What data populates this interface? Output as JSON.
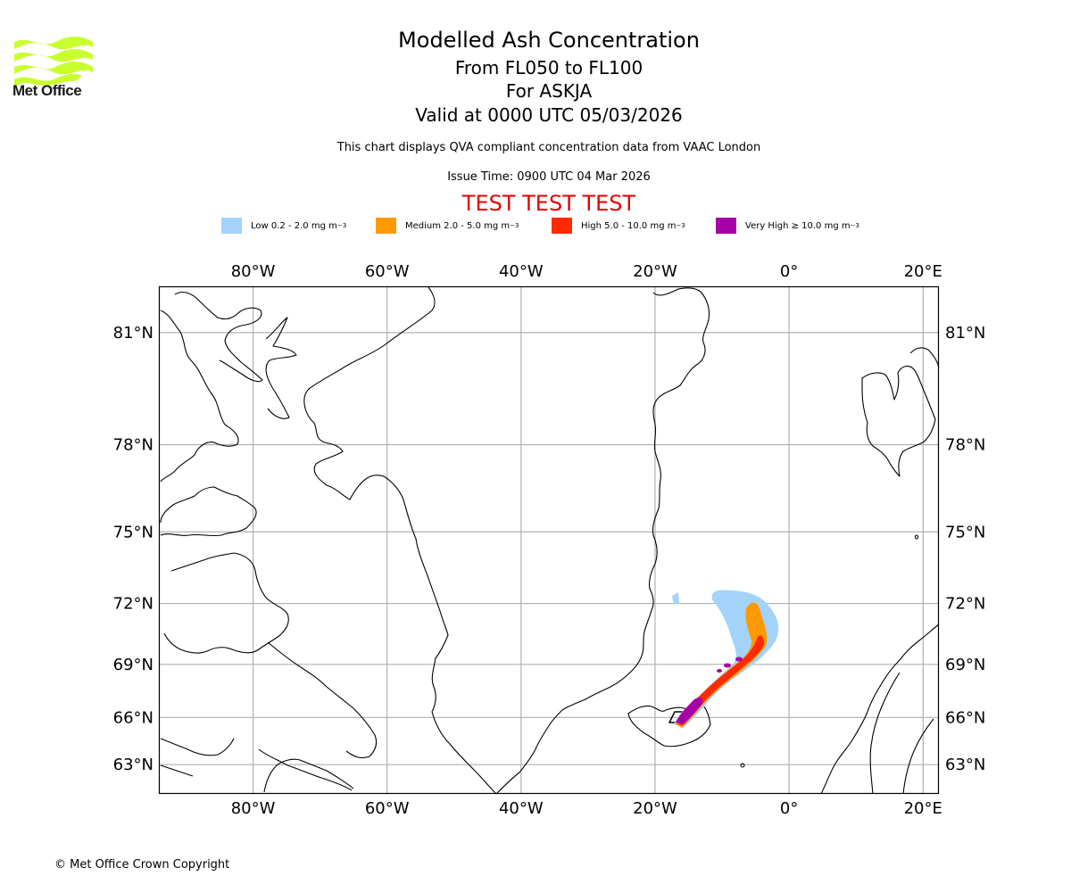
{
  "header": {
    "logo_label": "Met Office",
    "title": "Modelled Ash Concentration",
    "flight_levels": "From FL050 to FL100",
    "volcano": "For ASKJA",
    "valid_time": "Valid at 0000 UTC 05/03/2026",
    "subtitle": "This chart displays QVA compliant concentration data from VAAC London",
    "issue_time": "Issue Time: 0900 UTC 04 Mar 2026",
    "test_banner": "TEST TEST TEST"
  },
  "legend": {
    "unit_suffix": "mg m",
    "unit_exponent": "−3",
    "items": [
      {
        "label": "Low 0.2 - 2.0",
        "color": "#a3d3fa"
      },
      {
        "label": "Medium 2.0 - 5.0",
        "color": "#ff9900"
      },
      {
        "label": "High 5.0 - 10.0",
        "color": "#ff2a00"
      },
      {
        "label": "Very High ≥ 10.0",
        "color": "#a600a6"
      }
    ]
  },
  "map": {
    "longitude_ticks": [
      "80°W",
      "60°W",
      "40°W",
      "20°W",
      "0°",
      "20°E"
    ],
    "latitude_ticks": [
      "81°N",
      "78°N",
      "75°N",
      "72°N",
      "69°N",
      "66°N",
      "63°N"
    ],
    "longitude_values": [
      -80,
      -60,
      -40,
      -20,
      0,
      20
    ],
    "latitude_values": [
      81,
      78,
      75,
      72,
      69,
      66,
      63
    ],
    "extent": {
      "lon_min": -94,
      "lon_max": 22.3,
      "lat_min": 61,
      "lat_max": 82
    },
    "colors": {
      "grid": "#b0b0b0",
      "coast": "#000000",
      "frame": "#000000"
    }
  },
  "footer": {
    "copyright": "© Met Office Crown Copyright"
  }
}
